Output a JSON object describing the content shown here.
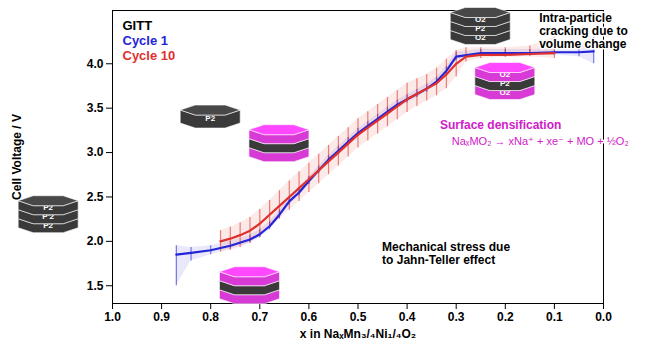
{
  "chart_data": {
    "type": "line",
    "xlabel": "x in NaₓMn₃/₄Ni₁/₄O₂",
    "ylabel": "Cell Voltage / V",
    "xlim": [
      1.0,
      0.0
    ],
    "xticks": [
      {
        "value": 1,
        "label": "1.0"
      },
      0.9,
      0.8,
      0.7,
      0.6,
      0.5,
      0.4,
      0.3,
      0.2,
      0.1,
      {
        "value": 0,
        "label": "0.0"
      }
    ],
    "ylim": [
      1.3,
      4.6
    ],
    "yticks": [
      1.5,
      {
        "value": 2,
        "label": "2.0"
      },
      2.5,
      {
        "value": 3,
        "label": "3.0"
      },
      3.5,
      {
        "value": 4,
        "label": "4.0"
      }
    ],
    "legend_title": "GITT",
    "legend": "top-left",
    "series": [
      {
        "name": "Cycle 1",
        "color": "#2424d8",
        "x": [
          0.87,
          0.84,
          0.8,
          0.76,
          0.72,
          0.7,
          0.68,
          0.66,
          0.64,
          0.62,
          0.6,
          0.58,
          0.56,
          0.54,
          0.52,
          0.5,
          0.48,
          0.46,
          0.44,
          0.42,
          0.4,
          0.38,
          0.36,
          0.34,
          0.32,
          0.3,
          0.25,
          0.2,
          0.15,
          0.1,
          0.05,
          0.02
        ],
        "values": [
          1.85,
          1.87,
          1.9,
          1.95,
          2.02,
          2.08,
          2.17,
          2.3,
          2.45,
          2.55,
          2.68,
          2.8,
          2.92,
          3.02,
          3.12,
          3.22,
          3.3,
          3.38,
          3.46,
          3.54,
          3.6,
          3.66,
          3.72,
          3.8,
          3.92,
          4.08,
          4.12,
          4.12,
          4.12,
          4.13,
          4.13,
          4.14
        ],
        "low": [
          1.5,
          1.78,
          1.85,
          1.91,
          1.98,
          2.04,
          2.13,
          2.26,
          2.41,
          2.51,
          2.64,
          2.76,
          2.88,
          2.98,
          3.08,
          3.18,
          3.26,
          3.34,
          3.42,
          3.5,
          3.56,
          3.62,
          3.68,
          3.76,
          3.88,
          4.04,
          4.09,
          4.09,
          4.09,
          4.1,
          4.08,
          4.0
        ],
        "high": [
          1.95,
          1.93,
          1.95,
          2.0,
          2.07,
          2.13,
          2.22,
          2.35,
          2.5,
          2.6,
          2.73,
          2.85,
          2.97,
          3.07,
          3.17,
          3.27,
          3.35,
          3.43,
          3.51,
          3.59,
          3.65,
          3.71,
          3.77,
          3.85,
          3.97,
          4.13,
          4.16,
          4.16,
          4.16,
          4.17,
          4.2,
          4.3
        ]
      },
      {
        "name": "Cycle 10",
        "color": "#e0302c",
        "x": [
          0.78,
          0.76,
          0.74,
          0.72,
          0.7,
          0.68,
          0.66,
          0.64,
          0.62,
          0.6,
          0.58,
          0.56,
          0.54,
          0.52,
          0.5,
          0.48,
          0.46,
          0.44,
          0.42,
          0.4,
          0.38,
          0.36,
          0.34,
          0.32,
          0.3,
          0.28,
          0.25,
          0.2,
          0.15,
          0.1
        ],
        "values": [
          2.0,
          2.03,
          2.07,
          2.12,
          2.2,
          2.3,
          2.4,
          2.5,
          2.6,
          2.7,
          2.8,
          2.9,
          3.0,
          3.1,
          3.2,
          3.28,
          3.36,
          3.44,
          3.52,
          3.6,
          3.66,
          3.72,
          3.78,
          3.88,
          4.0,
          4.08,
          4.1,
          4.1,
          4.11,
          4.12
        ],
        "low": [
          1.88,
          1.9,
          1.93,
          1.98,
          2.05,
          2.15,
          2.25,
          2.35,
          2.45,
          2.55,
          2.65,
          2.75,
          2.85,
          2.95,
          3.05,
          3.13,
          3.21,
          3.29,
          3.37,
          3.45,
          3.52,
          3.58,
          3.64,
          3.72,
          3.85,
          4.02,
          4.06,
          4.07,
          4.08,
          4.06
        ],
        "high": [
          2.12,
          2.16,
          2.21,
          2.27,
          2.36,
          2.46,
          2.57,
          2.68,
          2.78,
          2.88,
          2.98,
          3.08,
          3.18,
          3.28,
          3.38,
          3.46,
          3.54,
          3.62,
          3.7,
          3.78,
          3.83,
          3.88,
          3.95,
          4.05,
          4.15,
          4.18,
          4.18,
          4.18,
          4.2,
          4.3
        ]
      }
    ],
    "annotations": [
      {
        "text": "Intra-particle\ncracking due to\nvolume change",
        "x": 0.13,
        "y": 4.58,
        "color": "#000000"
      },
      {
        "text": "Surface densification",
        "x": 0.332,
        "y": 3.38,
        "color": "#d020c8"
      },
      {
        "text": "NaₓMO₂ → xNa⁺ + xe⁻ + MO + ½O₂",
        "x": 0.308,
        "y": 3.18,
        "color": "#d020c8"
      },
      {
        "text": "Mechanical stress due\nto Jahn-Teller effect",
        "x": 0.45,
        "y": 2.0,
        "color": "#000000"
      }
    ],
    "icons": [
      {
        "x": 0.25,
        "y": 4.42,
        "layers": [
          {
            "label": "O2",
            "color": "#3a3a3a"
          },
          {
            "label": "P2",
            "color": "#3a3a3a"
          },
          {
            "label": "O2",
            "color": "#3a3a3a"
          }
        ]
      },
      {
        "x": 0.2,
        "y": 3.8,
        "layers": [
          {
            "label": "O2",
            "color": "#d83ad6"
          },
          {
            "label": "P2",
            "color": "#3a3a3a"
          },
          {
            "label": "O2",
            "color": "#d83ad6"
          }
        ]
      },
      {
        "x": 0.8,
        "y": 3.4,
        "layers": [
          {
            "label": "P2",
            "color": "#3a3a3a"
          }
        ]
      },
      {
        "x": 0.66,
        "y": 3.1,
        "layers": [
          {
            "color": "#d83ad6"
          },
          {
            "color": "#3a3a3a"
          },
          {
            "color": "#d83ad6"
          }
        ]
      },
      {
        "x": 1.13,
        "y": 2.3,
        "layers": [
          {
            "label": "P2",
            "color": "#3a3a3a"
          },
          {
            "label": "P'2",
            "color": "#3a3a3a"
          },
          {
            "label": "P2",
            "color": "#3a3a3a"
          }
        ]
      },
      {
        "x": 0.72,
        "y": 1.5,
        "layers": [
          {
            "color": "#d83ad6"
          },
          {
            "color": "#3a3a3a"
          },
          {
            "color": "#d83ad6"
          }
        ]
      }
    ]
  }
}
